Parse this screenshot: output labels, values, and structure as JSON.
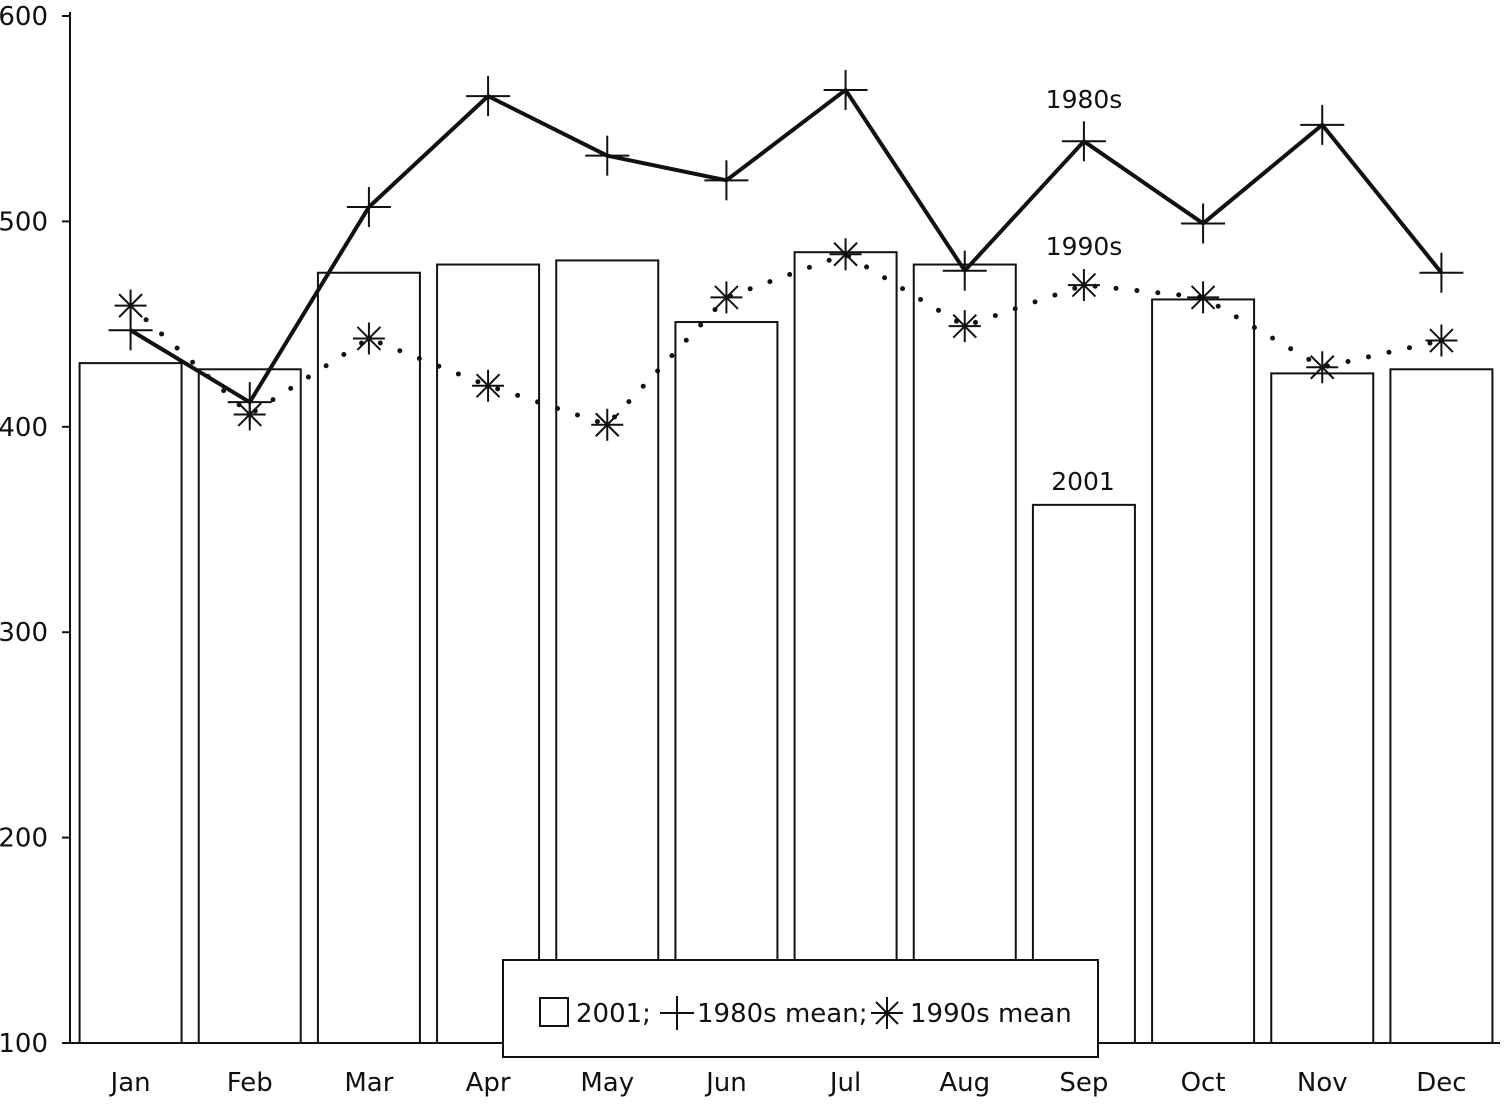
{
  "chart_data": {
    "type": "bar",
    "categories": [
      "Jan",
      "Feb",
      "Mar",
      "Apr",
      "May",
      "Jun",
      "Jul",
      "Aug",
      "Sep",
      "Oct",
      "Nov",
      "Dec"
    ],
    "ylim": [
      100,
      600
    ],
    "yticks": [
      100,
      200,
      300,
      400,
      500,
      600
    ],
    "grid": false,
    "legend": {
      "placement": "bottom-center",
      "entries": [
        {
          "marker": "square-icon",
          "text": "2001;"
        },
        {
          "marker": "plus-icon",
          "text": "1980s mean;"
        },
        {
          "marker": "asterisk-icon",
          "text": "1990s mean"
        }
      ]
    },
    "series": [
      {
        "key": "2001",
        "kind": "bar",
        "label": "2001",
        "values": [
          431,
          428,
          475,
          479,
          481,
          451,
          485,
          479,
          362,
          462,
          426,
          428
        ]
      },
      {
        "key": "1980s",
        "kind": "line",
        "style": "solid",
        "marker": "plus",
        "label": "1980s",
        "values": [
          447,
          412,
          507,
          561,
          532,
          520,
          564,
          476,
          539,
          499,
          547,
          475
        ]
      },
      {
        "key": "1990s",
        "kind": "line",
        "style": "dotted",
        "marker": "asterisk",
        "label": "1990s",
        "values": [
          459,
          406,
          443,
          420,
          401,
          463,
          484,
          449,
          469,
          463,
          429,
          442
        ]
      }
    ],
    "colors": {
      "ink": "#111111",
      "bar_fill": "#ffffff"
    }
  }
}
